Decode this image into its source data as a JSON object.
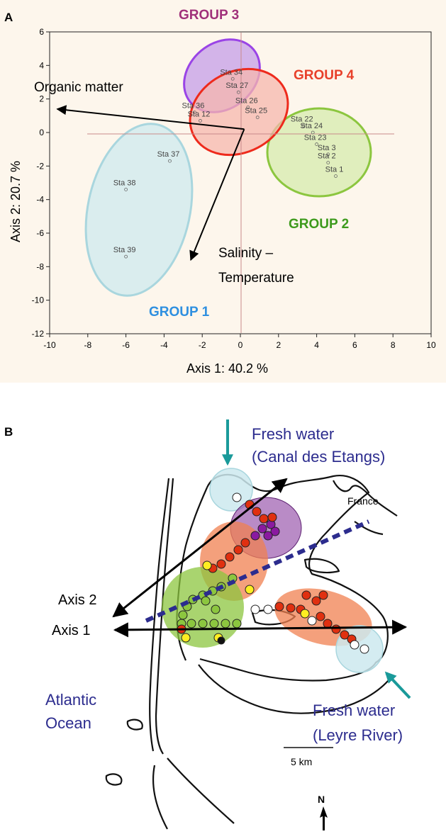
{
  "panel_labels": {
    "a": "A",
    "b": "B"
  },
  "chart_data": {
    "type": "scatter",
    "xlabel": "Axis 1: 40.2 %",
    "ylabel": "Axis 2: 20.7 %",
    "xlim": [
      -10,
      10
    ],
    "ylim": [
      -12,
      6
    ],
    "xticks": [
      -10,
      -8,
      -6,
      -4,
      -2,
      0,
      2,
      4,
      6,
      8,
      10
    ],
    "yticks": [
      -12,
      -10,
      -8,
      -6,
      -4,
      -2,
      0,
      2,
      4,
      6
    ],
    "reference_lines": {
      "x": 0,
      "y": 0
    },
    "points": [
      {
        "label": "Sta 37",
        "x": -3.7,
        "y": -1.7
      },
      {
        "label": "Sta 38",
        "x": -6.0,
        "y": -3.4
      },
      {
        "label": "Sta 39",
        "x": -6.0,
        "y": -7.4
      },
      {
        "label": "Sta 34",
        "x": -0.4,
        "y": 3.2
      },
      {
        "label": "Sta 36",
        "x": -2.4,
        "y": 1.2
      },
      {
        "label": "Sta 27",
        "x": -0.1,
        "y": 2.4
      },
      {
        "label": "Sta 12",
        "x": -2.1,
        "y": 0.7
      },
      {
        "label": "Sta 26",
        "x": 0.4,
        "y": 1.5
      },
      {
        "label": "Sta 25",
        "x": 0.9,
        "y": 0.9
      },
      {
        "label": "Sta 22",
        "x": 3.3,
        "y": 0.4
      },
      {
        "label": "Sta 24",
        "x": 3.8,
        "y": 0.0
      },
      {
        "label": "Sta 23",
        "x": 4.0,
        "y": -0.7
      },
      {
        "label": "Sta 3",
        "x": 4.6,
        "y": -1.3
      },
      {
        "label": "Sta 2",
        "x": 4.6,
        "y": -1.8
      },
      {
        "label": "Sta 1",
        "x": 5.0,
        "y": -2.6
      }
    ],
    "vectors": [
      {
        "label": "Organic matter",
        "from": [
          0.2,
          0.2
        ],
        "to": [
          -9.6,
          1.4
        ]
      },
      {
        "label": "Salinity – Temperature",
        "from": [
          0.2,
          0.2
        ],
        "to": [
          -2.6,
          -7.6
        ]
      }
    ],
    "groups": [
      {
        "name": "GROUP 1",
        "color": "#2e8fe0",
        "fill": "#cde9ef",
        "stroke": "#a9d6de"
      },
      {
        "name": "GROUP 2",
        "color": "#3d9a1c",
        "fill": "#d8ecb2",
        "stroke": "#8cc63f"
      },
      {
        "name": "GROUP 3",
        "color": "#a0307a",
        "fill": "#c8a4e8",
        "stroke": "#9a44e6"
      },
      {
        "name": "GROUP 4",
        "color": "#e8402a",
        "fill": "#f6b7ae",
        "stroke": "#ee2a1c"
      }
    ]
  },
  "map": {
    "labels": {
      "fresh_north_1": "Fresh water",
      "fresh_north_2": "(Canal des Etangs)",
      "france": "France",
      "axis2": "Axis 2",
      "axis1": "Axis 1",
      "atlantic_1": "Atlantic",
      "atlantic_2": "Ocean",
      "fresh_south_1": "Fresh water",
      "fresh_south_2": "(Leyre River)",
      "scale": "5 km",
      "north": "N"
    }
  }
}
